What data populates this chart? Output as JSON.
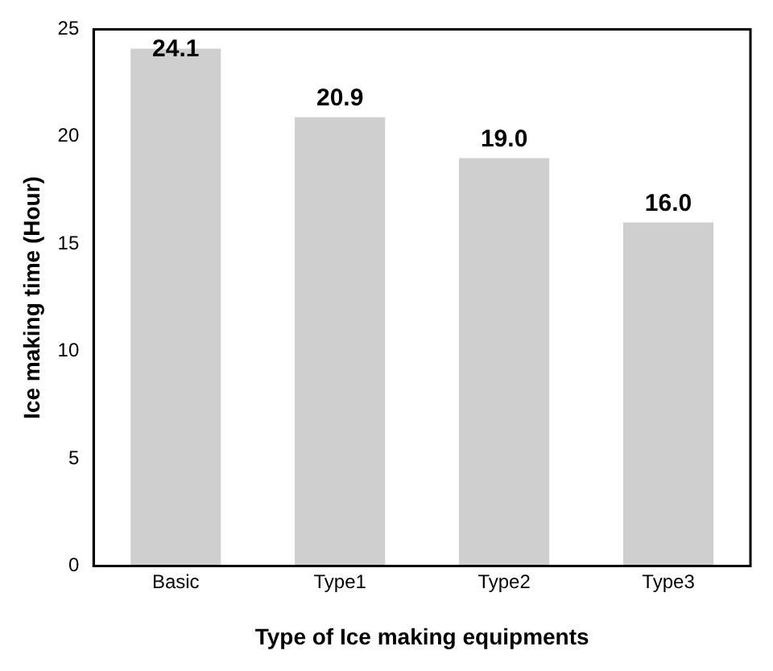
{
  "chart_data": {
    "type": "bar",
    "xlabel": "Type of Ice making equipments",
    "ylabel": "Ice making time (Hour)",
    "categories": [
      "Basic",
      "Type1",
      "Type2",
      "Type3"
    ],
    "values": [
      24.1,
      20.9,
      19.0,
      16.0
    ],
    "value_labels": [
      "24.1",
      "20.9",
      "19.0",
      "16.0"
    ],
    "color": "#cfcfcf",
    "ylim": [
      0,
      25
    ],
    "yticks": [
      0,
      5,
      10,
      15,
      20,
      25
    ],
    "grid": false,
    "legend": false
  }
}
